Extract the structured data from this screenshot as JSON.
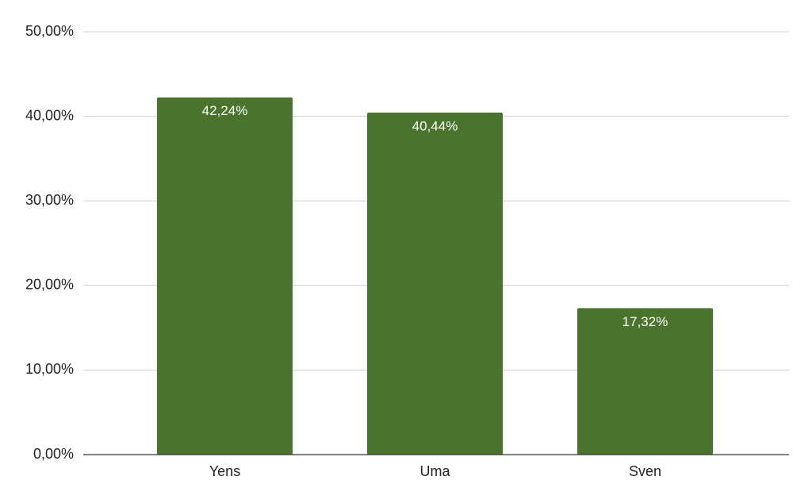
{
  "chart_data": {
    "type": "bar",
    "categories": [
      "Yens",
      "Uma",
      "Sven"
    ],
    "values": [
      42.24,
      40.44,
      17.32
    ],
    "value_labels": [
      "42,24%",
      "40,44%",
      "17,32%"
    ],
    "color": "#4a732e",
    "ylim": [
      0,
      50
    ],
    "yticks": [
      {
        "value": 0,
        "label": "0,00%"
      },
      {
        "value": 10,
        "label": "10,00%"
      },
      {
        "value": 20,
        "label": "20,00%"
      },
      {
        "value": 30,
        "label": "30,00%"
      },
      {
        "value": 40,
        "label": "40,00%"
      },
      {
        "value": 50,
        "label": "50,00%"
      }
    ],
    "grid": true
  }
}
